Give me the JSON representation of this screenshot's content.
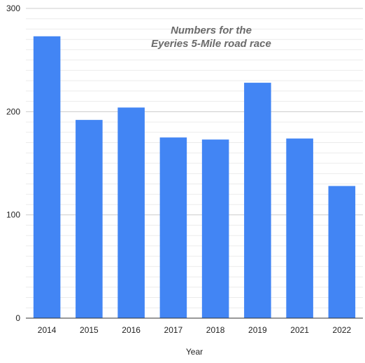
{
  "chart_data": {
    "type": "bar",
    "title_lines": [
      "Numbers for the",
      "Eyeries 5-Mile road race"
    ],
    "xlabel": "Year",
    "ylabel": "",
    "categories": [
      "2014",
      "2015",
      "2016",
      "2017",
      "2018",
      "2019",
      "2021",
      "2022"
    ],
    "values": [
      273,
      192,
      204,
      175,
      173,
      228,
      174,
      128
    ],
    "ylim": [
      0,
      300
    ],
    "yticks": [
      "0",
      "100",
      "200",
      "300"
    ],
    "grid": true,
    "legend": "none",
    "colors": {
      "bar": "#4285f4",
      "major_grid": "#cccccc",
      "minor_grid": "#ebebeb",
      "baseline": "#333333"
    }
  }
}
